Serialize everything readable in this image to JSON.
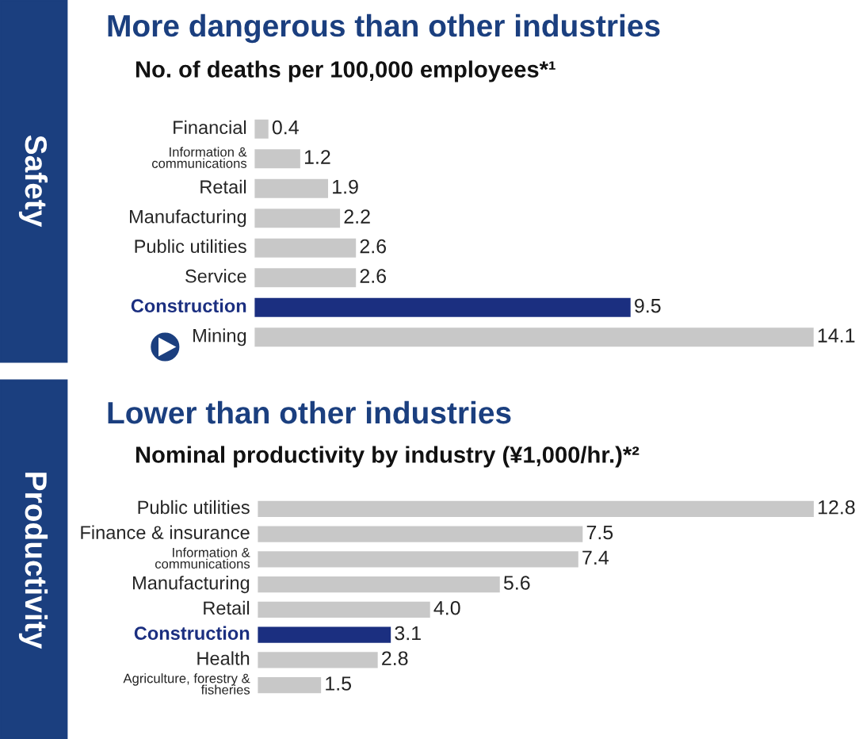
{
  "chart_data": [
    {
      "type": "bar",
      "orientation": "horizontal",
      "title": "More dangerous than other industries",
      "subtitle": "No. of deaths per 100,000 employees*¹",
      "annotations": [
        "Safety"
      ],
      "tick_labels": "y",
      "data_labels": true,
      "categories": [
        "Financial",
        "Information &\ncommunications",
        "Retail",
        "Manufacturing",
        "Public utilities",
        "Service",
        "Construction",
        "Mining"
      ],
      "values": [
        0.4,
        1.2,
        1.9,
        2.2,
        2.6,
        2.6,
        9.5,
        14.1
      ],
      "colors": [
        "#c8c8c8",
        "#c8c8c8",
        "#c8c8c8",
        "#c8c8c8",
        "#c8c8c8",
        "#c8c8c8",
        "#1b2f80",
        "#c8c8c8"
      ]
    },
    {
      "type": "bar",
      "orientation": "horizontal",
      "title": "Lower than other industries",
      "subtitle": "Nominal productivity by industry (¥1,000/hr.)*²",
      "annotations": [
        "Productivity"
      ],
      "tick_labels": "y",
      "categories": [
        "Public utilities",
        "Finance & insurance",
        "Information &\ncommunications",
        "Manufacturing",
        "Retail",
        "Construction",
        "Health",
        "Agriculture, forestry &\nfisheries"
      ],
      "values": [
        12.8,
        7.5,
        7.4,
        5.6,
        4.0,
        3.1,
        2.8,
        1.5
      ],
      "value_labels": [
        "12.8",
        "7.5",
        "7.4",
        "5.6",
        "4.0",
        "3.1",
        "2.8",
        "1.5"
      ],
      "colors": [
        "#c8c8c8",
        "#c8c8c8",
        "#c8c8c8",
        "#c8c8c8",
        "#c8c8c8",
        "#1b2f80",
        "#c8c8c8",
        "#c8c8c8"
      ]
    }
  ]
}
